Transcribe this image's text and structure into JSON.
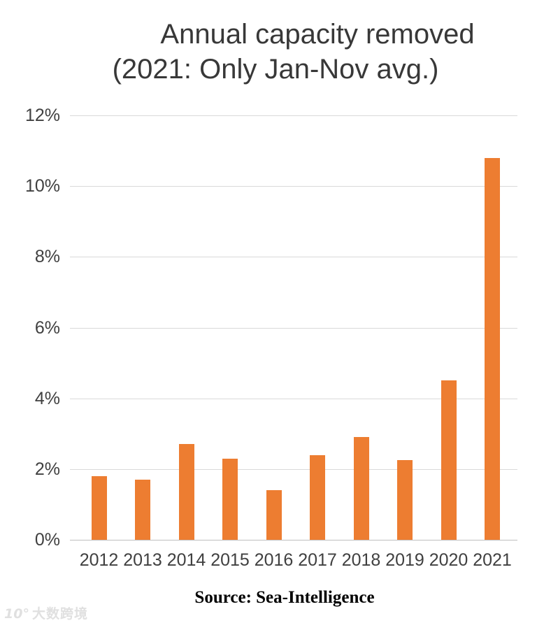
{
  "title": {
    "line1": "Annual capacity removed",
    "line2": "(2021: Only Jan-Nov avg.)"
  },
  "source": "Source: Sea-Intelligence",
  "watermark": {
    "logo": "10°",
    "text": "大数跨境"
  },
  "colors": {
    "bar": "#ed7d31",
    "gridline": "#d9d9d9",
    "axis_line": "#bfbfbf",
    "tick_text": "#404040",
    "title_text": "#383838"
  },
  "chart_data": {
    "type": "bar",
    "title": "Annual capacity removed (2021: Only Jan-Nov avg.)",
    "categories": [
      "2012",
      "2013",
      "2014",
      "2015",
      "2016",
      "2017",
      "2018",
      "2019",
      "2020",
      "2021"
    ],
    "values": [
      1.8,
      1.7,
      2.7,
      2.3,
      1.4,
      2.4,
      2.9,
      2.25,
      4.5,
      10.8
    ],
    "unit": "%",
    "xlabel": "",
    "ylabel": "",
    "ylim": [
      0,
      12
    ],
    "yticks": [
      "0%",
      "2%",
      "4%",
      "6%",
      "8%",
      "10%",
      "12%"
    ],
    "ytick_values": [
      0,
      2,
      4,
      6,
      8,
      10,
      12
    ],
    "grid": true,
    "legend": "none",
    "bar_color": "#ed7d31"
  }
}
